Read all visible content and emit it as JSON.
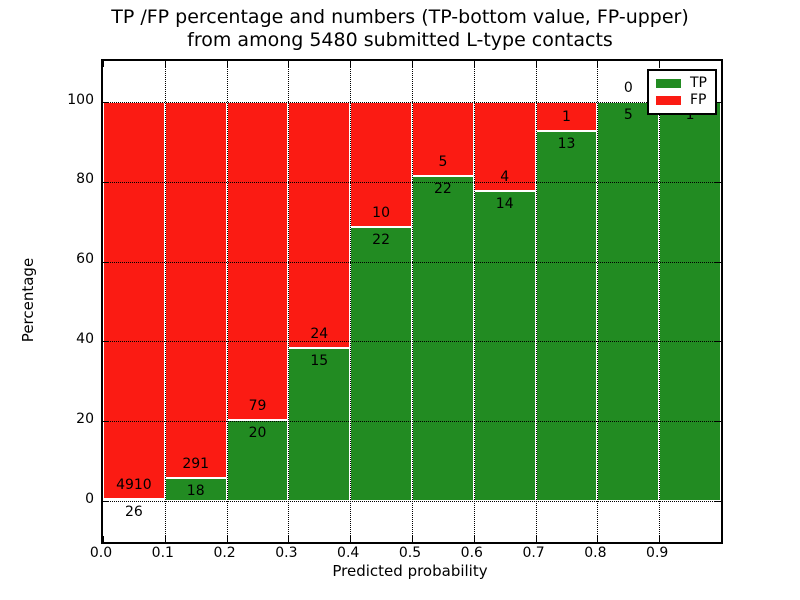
{
  "figure": {
    "title_line1": "TP /FP percentage and numbers (TP-bottom value, FP-upper)",
    "title_line2": "from among 5480 submitted L-type contacts"
  },
  "axes": {
    "xlabel": "Predicted probability",
    "ylabel": "Percentage",
    "x_tick_labels": [
      "0.0",
      "0.1",
      "0.2",
      "0.3",
      "0.4",
      "0.5",
      "0.6",
      "0.7",
      "0.8",
      "0.9"
    ],
    "y_tick_labels": [
      "0",
      "20",
      "40",
      "60",
      "80",
      "100"
    ]
  },
  "legend": {
    "items": [
      {
        "label": "TP",
        "color": "#228b22"
      },
      {
        "label": "FP",
        "color": "#fb1b13"
      }
    ]
  },
  "colors": {
    "tp": "#228b22",
    "fp": "#fb1b13",
    "grid": "#000000",
    "background": "#ffffff"
  },
  "chart_data": {
    "type": "bar",
    "stacked": true,
    "normalized_to_percent": true,
    "title": "TP /FP percentage and numbers (TP-bottom value, FP-upper) from among 5480 submitted L-type contacts",
    "xlabel": "Predicted probability",
    "ylabel": "Percentage",
    "total_contacts": 5480,
    "bin_edges": [
      0.0,
      0.1,
      0.2,
      0.3,
      0.4,
      0.5,
      0.6,
      0.7,
      0.8,
      0.9,
      1.0
    ],
    "categories": [
      "0.0-0.1",
      "0.1-0.2",
      "0.2-0.3",
      "0.3-0.4",
      "0.4-0.5",
      "0.5-0.6",
      "0.6-0.7",
      "0.7-0.8",
      "0.8-0.9",
      "0.9-1.0"
    ],
    "series": [
      {
        "name": "TP",
        "counts": [
          26,
          18,
          20,
          15,
          22,
          22,
          14,
          13,
          5,
          1
        ],
        "percent": [
          0.53,
          5.83,
          20.2,
          38.46,
          68.75,
          81.48,
          77.78,
          92.86,
          100.0,
          100.0
        ]
      },
      {
        "name": "FP",
        "counts": [
          4910,
          291,
          79,
          24,
          10,
          5,
          4,
          1,
          0,
          0
        ],
        "percent": [
          99.47,
          94.17,
          79.8,
          61.54,
          31.25,
          18.52,
          22.22,
          7.14,
          0.0,
          0.0
        ]
      }
    ],
    "x_ticks": [
      0.0,
      0.1,
      0.2,
      0.3,
      0.4,
      0.5,
      0.6,
      0.7,
      0.8,
      0.9
    ],
    "y_ticks": [
      0,
      20,
      40,
      60,
      80,
      100
    ],
    "ylim_percent": [
      0,
      100
    ],
    "grid": "dotted",
    "legend_position": "upper right"
  }
}
